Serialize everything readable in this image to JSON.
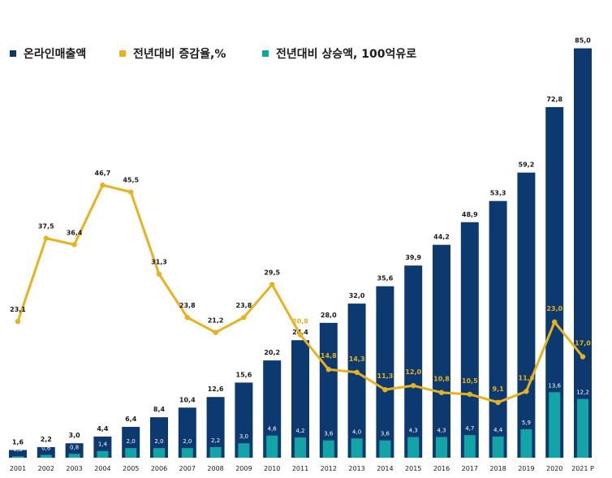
{
  "chart_data": {
    "type": "bar",
    "categories": [
      "2001",
      "2002",
      "2003",
      "2004",
      "2005",
      "2006",
      "2007",
      "2008",
      "2009",
      "2010",
      "2011",
      "2012",
      "2013",
      "2014",
      "2015",
      "2016",
      "2017",
      "2018",
      "2019",
      "2020",
      "2021 P"
    ],
    "series": [
      {
        "name": "온라인매출액",
        "type": "bar",
        "color": "#0c3a70",
        "values": [
          1.6,
          2.2,
          3.0,
          4.4,
          6.4,
          8.4,
          10.4,
          12.6,
          15.6,
          20.2,
          24.4,
          28.0,
          32.0,
          35.6,
          39.9,
          44.2,
          48.9,
          53.3,
          59.2,
          72.8,
          85.0
        ],
        "labels": [
          "1,6",
          "2,2",
          "3,0",
          "4,4",
          "6,4",
          "8,4",
          "10,4",
          "12,6",
          "15,6",
          "20,2",
          "24,4",
          "28,0",
          "32,0",
          "35,6",
          "39,9",
          "44,2",
          "48,9",
          "53,3",
          "59,2",
          "72,8",
          "85,0"
        ]
      },
      {
        "name": "전년대비 상승액, 100억유로",
        "type": "bar",
        "color": "#12a4a6",
        "values": [
          0.3,
          0.6,
          0.8,
          1.4,
          2.0,
          2.0,
          2.0,
          2.2,
          3.0,
          4.6,
          4.2,
          3.6,
          4.0,
          3.6,
          4.3,
          4.3,
          4.7,
          4.4,
          5.9,
          13.6,
          12.2
        ],
        "labels": [
          "0,3",
          "0,6",
          "0,8",
          "1,4",
          "2,0",
          "2,0",
          "2,0",
          "2,2",
          "3,0",
          "4,6",
          "4,2",
          "3,6",
          "4,0",
          "3,6",
          "4,3",
          "4,3",
          "4,7",
          "4,4",
          "5,9",
          "13,6",
          "12,2"
        ]
      },
      {
        "name": "전년대비 증감율,%",
        "type": "line",
        "color": "#e8b21e",
        "values": [
          23.1,
          37.5,
          36.4,
          46.7,
          45.5,
          31.3,
          23.8,
          21.2,
          23.8,
          29.5,
          20.8,
          14.8,
          14.3,
          11.3,
          12.0,
          10.8,
          10.5,
          9.1,
          11.0,
          23.0,
          17.0
        ],
        "labels": [
          "23,1",
          "37,5",
          "36,4",
          "46,7",
          "45,5",
          "31,3",
          "23,8",
          "21,2",
          "23,8",
          "29,5",
          "20,8",
          "14,8",
          "14,3",
          "11,3",
          "12,0",
          "10,8",
          "10,5",
          "9,1",
          "11,0",
          "23,0",
          "17,0"
        ]
      }
    ],
    "legend_position": "top-left",
    "grid": false
  }
}
